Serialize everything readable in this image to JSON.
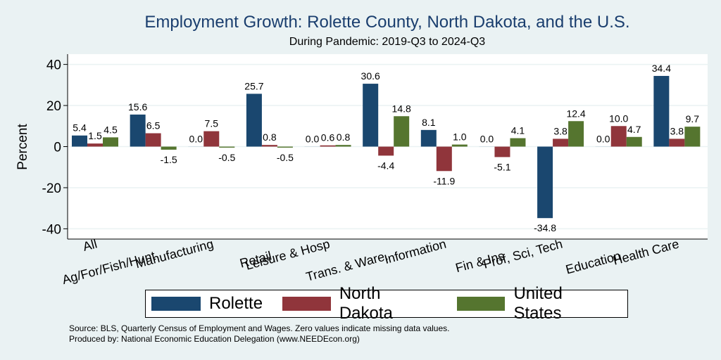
{
  "title": "Employment Growth: Rolette County, North Dakota, and the U.S.",
  "subtitle": "During Pandemic: 2019-Q3 to 2024-Q3",
  "chart_data": {
    "type": "bar",
    "categories": [
      "All",
      "Ag/For/Fish/Hunt",
      "Manufacturing",
      "Retail",
      "Leisure & Hosp",
      "Trans. & Ware.",
      "Information",
      "Fin & Ins",
      "Prof, Sci, Tech",
      "Education",
      "Health Care"
    ],
    "series": [
      {
        "name": "Rolette",
        "color": "#1a476f",
        "values": [
          5.4,
          15.6,
          0.0,
          25.7,
          0.0,
          30.6,
          8.1,
          0.0,
          -34.8,
          0.0,
          34.4
        ]
      },
      {
        "name": "North Dakota",
        "color": "#90353b",
        "values": [
          1.5,
          6.5,
          7.5,
          0.8,
          0.6,
          -4.4,
          -11.9,
          -5.1,
          3.8,
          10.0,
          3.8
        ]
      },
      {
        "name": "United States",
        "color": "#55752f",
        "values": [
          4.5,
          -1.5,
          -0.5,
          -0.5,
          0.8,
          14.8,
          1.0,
          4.1,
          12.4,
          4.7,
          9.7
        ]
      }
    ],
    "ylabel": "Percent",
    "yticks": [
      40,
      20,
      0,
      -20,
      -40
    ],
    "ylim": [
      -45,
      45
    ],
    "grid": true,
    "legend": "bottom"
  },
  "footnotes": {
    "source": "Source: BLS, Quarterly Census of Employment and Wages. Zero values indicate missing data values.",
    "produced": "Produced by: National Economic Education Delegation (www.NEEDEcon.org)"
  }
}
